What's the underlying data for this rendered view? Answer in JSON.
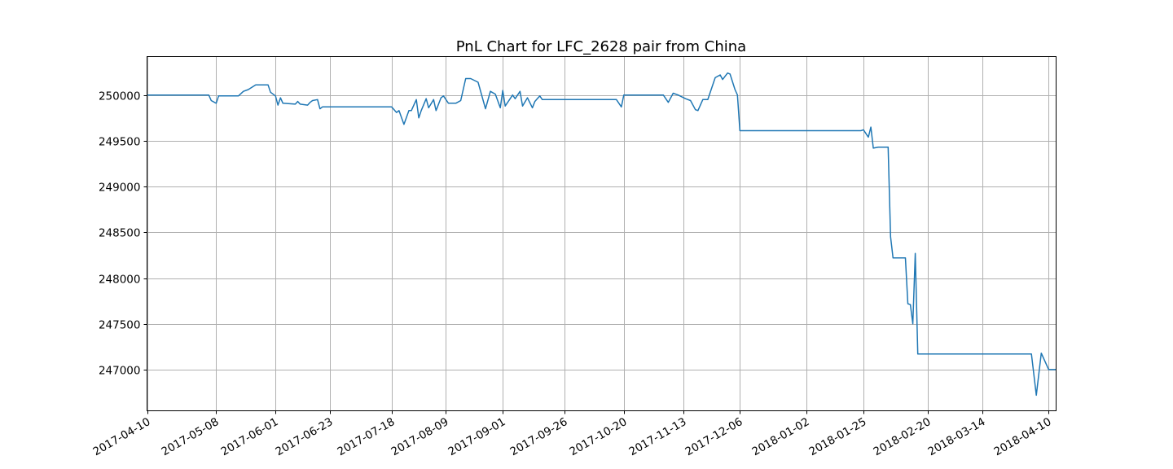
{
  "chart_data": {
    "type": "line",
    "title": "PnL Chart for LFC_2628 pair from China",
    "xlabel": "",
    "ylabel": "",
    "grid": true,
    "x_axis_type": "date",
    "xlim": [
      "2017-04-10",
      "2018-04-13"
    ],
    "ylim": [
      246550,
      250420
    ],
    "x_ticks": [
      "2017-04-10",
      "2017-05-08",
      "2017-06-01",
      "2017-06-23",
      "2017-07-18",
      "2017-08-09",
      "2017-09-01",
      "2017-09-26",
      "2017-10-20",
      "2017-11-13",
      "2017-12-06",
      "2018-01-02",
      "2018-01-25",
      "2018-02-20",
      "2018-03-14",
      "2018-04-10"
    ],
    "y_ticks": [
      247000,
      247500,
      248000,
      248500,
      249000,
      249500,
      250000
    ],
    "series": [
      {
        "color": "#1f77b4",
        "x": [
          "2017-04-10",
          "2017-05-05",
          "2017-05-06",
          "2017-05-08",
          "2017-05-09",
          "2017-05-17",
          "2017-05-19",
          "2017-05-21",
          "2017-05-24",
          "2017-05-29",
          "2017-05-30",
          "2017-06-01",
          "2017-06-02",
          "2017-06-03",
          "2017-06-04",
          "2017-06-09",
          "2017-06-10",
          "2017-06-11",
          "2017-06-14",
          "2017-06-15",
          "2017-06-16",
          "2017-06-18",
          "2017-06-19",
          "2017-06-20",
          "2017-06-21",
          "2017-07-18",
          "2017-07-20",
          "2017-07-21",
          "2017-07-23",
          "2017-07-25",
          "2017-07-26",
          "2017-07-28",
          "2017-07-29",
          "2017-07-30",
          "2017-08-01",
          "2017-08-02",
          "2017-08-04",
          "2017-08-05",
          "2017-08-07",
          "2017-08-08",
          "2017-08-10",
          "2017-08-13",
          "2017-08-15",
          "2017-08-17",
          "2017-08-19",
          "2017-08-22",
          "2017-08-25",
          "2017-08-27",
          "2017-08-29",
          "2017-08-31",
          "2017-09-01",
          "2017-09-02",
          "2017-09-04",
          "2017-09-05",
          "2017-09-06",
          "2017-09-07",
          "2017-09-08",
          "2017-09-09",
          "2017-09-11",
          "2017-09-13",
          "2017-09-14",
          "2017-09-16",
          "2017-09-17",
          "2017-09-19",
          "2017-09-21",
          "2017-09-22",
          "2017-10-17",
          "2017-10-19",
          "2017-10-20",
          "2017-11-05",
          "2017-11-07",
          "2017-11-09",
          "2017-11-11",
          "2017-11-14",
          "2017-11-16",
          "2017-11-18",
          "2017-11-19",
          "2017-11-21",
          "2017-11-22",
          "2017-11-23",
          "2017-11-26",
          "2017-11-28",
          "2017-11-29",
          "2017-12-01",
          "2017-12-02",
          "2017-12-04",
          "2017-12-05",
          "2017-12-06",
          "2017-12-07",
          "2017-12-08",
          "2017-12-09",
          "2018-01-24",
          "2018-01-25",
          "2018-01-27",
          "2018-01-28",
          "2018-01-29",
          "2018-01-31",
          "2018-02-04",
          "2018-02-05",
          "2018-02-06",
          "2018-02-11",
          "2018-02-12",
          "2018-02-13",
          "2018-02-14",
          "2018-02-15",
          "2018-02-16",
          "2018-02-18",
          "2018-02-19",
          "2018-04-03",
          "2018-04-05",
          "2018-04-07",
          "2018-04-10",
          "2018-04-13"
        ],
        "y": [
          250000,
          250000,
          249940,
          249910,
          249990,
          249990,
          250040,
          250060,
          250110,
          250110,
          250030,
          249990,
          249890,
          249970,
          249910,
          249900,
          249930,
          249900,
          249890,
          249920,
          249940,
          249950,
          249850,
          249870,
          249870,
          249870,
          249810,
          249830,
          249680,
          249830,
          249830,
          249950,
          249750,
          249830,
          249960,
          249860,
          249950,
          249830,
          249970,
          249990,
          249910,
          249910,
          249940,
          250180,
          250180,
          250140,
          249850,
          250040,
          250010,
          249860,
          250050,
          249880,
          249960,
          250000,
          249960,
          250000,
          250040,
          249880,
          249970,
          249860,
          249930,
          249990,
          249950,
          249950,
          249950,
          249950,
          249950,
          249870,
          250000,
          250000,
          249920,
          250020,
          250000,
          249960,
          249940,
          249840,
          249830,
          249950,
          249950,
          249950,
          250190,
          250220,
          250170,
          250240,
          250230,
          250060,
          250000,
          249610,
          249610,
          249610,
          249610,
          249610,
          249620,
          249540,
          249650,
          249420,
          249430,
          249430,
          248450,
          248220,
          248220,
          247720,
          247710,
          247500,
          248270,
          247170,
          247170,
          247170,
          247170,
          246720,
          247180,
          247000,
          247000
        ]
      }
    ]
  }
}
